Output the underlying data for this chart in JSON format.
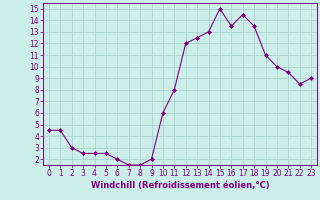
{
  "x": [
    0,
    1,
    2,
    3,
    4,
    5,
    6,
    7,
    8,
    9,
    10,
    11,
    12,
    13,
    14,
    15,
    16,
    17,
    18,
    19,
    20,
    21,
    22,
    23
  ],
  "y": [
    4.5,
    4.5,
    3.0,
    2.5,
    2.5,
    2.5,
    2.0,
    1.5,
    1.5,
    2.0,
    6.0,
    8.0,
    12.0,
    12.5,
    13.0,
    15.0,
    13.5,
    14.5,
    13.5,
    11.0,
    10.0,
    9.5,
    8.5,
    9.0
  ],
  "line_color": "#800080",
  "marker": "D",
  "marker_size": 2,
  "bg_color": "#cceee8",
  "grid_color": "#aad4cc",
  "xlabel": "Windchill (Refroidissement éolien,°C)",
  "xlabel_color": "#800080",
  "tick_color": "#800080",
  "spine_color": "#800080",
  "ylim": [
    1.5,
    15.5
  ],
  "xlim": [
    -0.5,
    23.5
  ],
  "yticks": [
    2,
    3,
    4,
    5,
    6,
    7,
    8,
    9,
    10,
    11,
    12,
    13,
    14,
    15
  ],
  "xticks": [
    0,
    1,
    2,
    3,
    4,
    5,
    6,
    7,
    8,
    9,
    10,
    11,
    12,
    13,
    14,
    15,
    16,
    17,
    18,
    19,
    20,
    21,
    22,
    23
  ],
  "tick_fontsize": 5.5,
  "xlabel_fontsize": 6.0
}
